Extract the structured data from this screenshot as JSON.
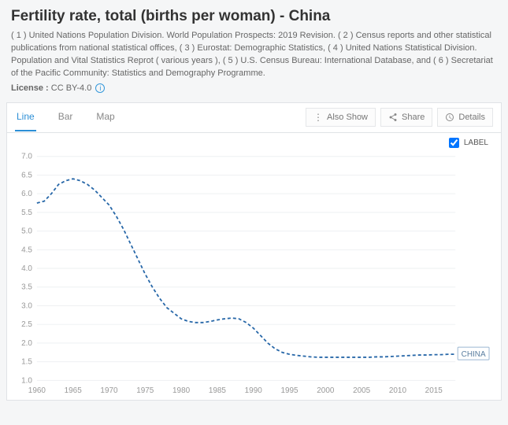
{
  "header": {
    "title": "Fertility rate, total (births per woman) - China",
    "subtitle": "( 1 ) United Nations Population Division. World Population Prospects: 2019 Revision. ( 2 ) Census reports and other statistical publications from national statistical offices, ( 3 ) Eurostat: Demographic Statistics, ( 4 ) United Nations Statistical Division. Population and Vital Statistics Reprot ( various years ), ( 5 ) U.S. Census Bureau: International Database, and ( 6 ) Secretariat of the Pacific Community: Statistics and Demography Programme.",
    "license_label": "License :",
    "license_value": "CC BY-4.0"
  },
  "toolbar": {
    "tabs": {
      "line": "Line",
      "bar": "Bar",
      "map": "Map",
      "active": "line"
    },
    "also_show": "Also Show",
    "share": "Share",
    "details": "Details"
  },
  "label_toggle": {
    "text": "LABEL",
    "checked": true
  },
  "chart": {
    "type": "line",
    "series_name": "CHINA",
    "line_color": "#2767a8",
    "dash": "4 3",
    "background": "#ffffff",
    "grid_color": "#eef0f2",
    "tick_color": "#999999",
    "y": {
      "min": 1.0,
      "max": 7.0,
      "step": 0.5
    },
    "x": {
      "min": 1960,
      "max": 2018,
      "ticks": [
        1960,
        1965,
        1970,
        1975,
        1980,
        1985,
        1990,
        1995,
        2000,
        2005,
        2010,
        2015
      ]
    },
    "points": [
      [
        1960,
        5.75
      ],
      [
        1961,
        5.8
      ],
      [
        1962,
        6.0
      ],
      [
        1963,
        6.25
      ],
      [
        1964,
        6.35
      ],
      [
        1965,
        6.4
      ],
      [
        1966,
        6.35
      ],
      [
        1967,
        6.25
      ],
      [
        1968,
        6.1
      ],
      [
        1969,
        5.9
      ],
      [
        1970,
        5.7
      ],
      [
        1971,
        5.4
      ],
      [
        1972,
        5.05
      ],
      [
        1973,
        4.65
      ],
      [
        1974,
        4.25
      ],
      [
        1975,
        3.85
      ],
      [
        1976,
        3.5
      ],
      [
        1977,
        3.2
      ],
      [
        1978,
        2.95
      ],
      [
        1979,
        2.8
      ],
      [
        1980,
        2.65
      ],
      [
        1981,
        2.58
      ],
      [
        1982,
        2.55
      ],
      [
        1983,
        2.55
      ],
      [
        1984,
        2.58
      ],
      [
        1985,
        2.62
      ],
      [
        1986,
        2.65
      ],
      [
        1987,
        2.67
      ],
      [
        1988,
        2.65
      ],
      [
        1989,
        2.55
      ],
      [
        1990,
        2.4
      ],
      [
        1991,
        2.2
      ],
      [
        1992,
        2.0
      ],
      [
        1993,
        1.85
      ],
      [
        1994,
        1.75
      ],
      [
        1995,
        1.7
      ],
      [
        1996,
        1.67
      ],
      [
        1997,
        1.65
      ],
      [
        1998,
        1.63
      ],
      [
        1999,
        1.62
      ],
      [
        2000,
        1.62
      ],
      [
        2001,
        1.62
      ],
      [
        2002,
        1.62
      ],
      [
        2003,
        1.62
      ],
      [
        2004,
        1.62
      ],
      [
        2005,
        1.62
      ],
      [
        2006,
        1.62
      ],
      [
        2007,
        1.63
      ],
      [
        2008,
        1.63
      ],
      [
        2009,
        1.64
      ],
      [
        2010,
        1.65
      ],
      [
        2011,
        1.66
      ],
      [
        2012,
        1.67
      ],
      [
        2013,
        1.68
      ],
      [
        2014,
        1.68
      ],
      [
        2015,
        1.69
      ],
      [
        2016,
        1.69
      ],
      [
        2017,
        1.7
      ],
      [
        2018,
        1.7
      ]
    ]
  }
}
